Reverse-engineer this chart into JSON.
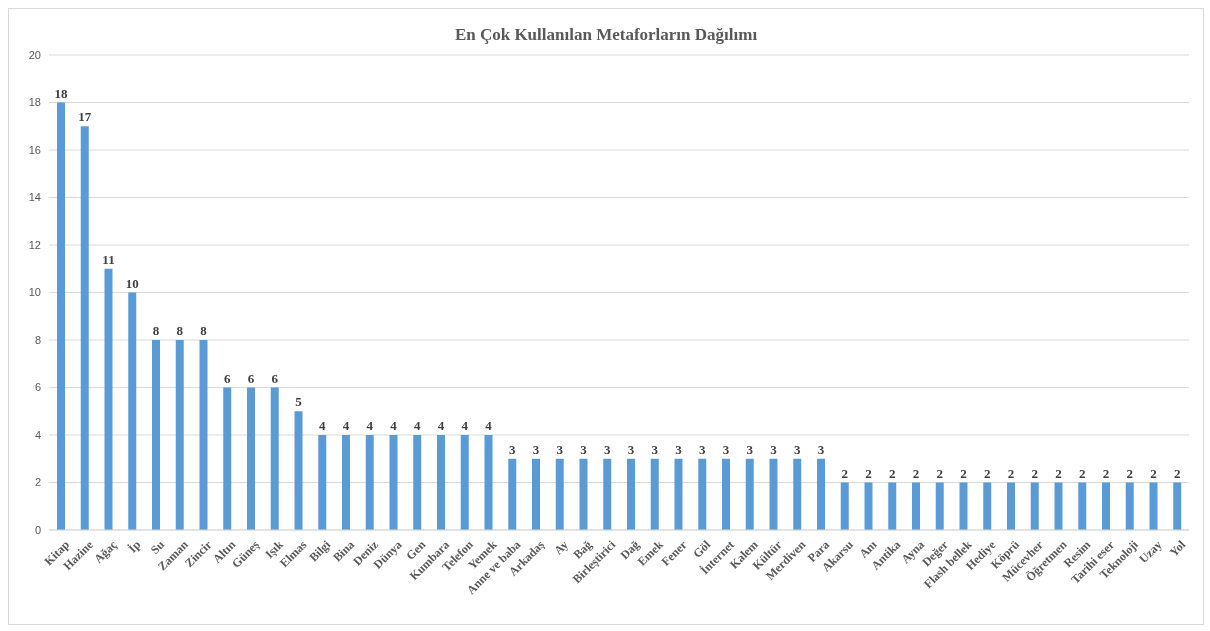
{
  "chart_data": {
    "type": "bar",
    "title": "En Çok Kullanılan Metaforların Dağılımı",
    "categories": [
      "Kitap",
      "Hazine",
      "Ağaç",
      "İp",
      "Su",
      "Zaman",
      "Zincir",
      "Altın",
      "Güneş",
      "Işık",
      "Elmas",
      "Bilgi",
      "Bina",
      "Deniz",
      "Dünya",
      "Gen",
      "Kumbara",
      "Telefon",
      "Yemek",
      "Anne ve baba",
      "Arkadaş",
      "Ay",
      "Bağ",
      "Birleştirici",
      "Dağ",
      "Emek",
      "Fener",
      "Göl",
      "İnternet",
      "Kalem",
      "Kültür",
      "Merdiven",
      "Para",
      "Akarsu",
      "Anı",
      "Antika",
      "Ayna",
      "Değer",
      "Flash bellek",
      "Hediye",
      "Köprü",
      "Mücevher",
      "Öğretmen",
      "Resim",
      "Tarihi eser",
      "Teknoloji",
      "Uzay",
      "Yol"
    ],
    "values": [
      18,
      17,
      11,
      10,
      8,
      8,
      8,
      6,
      6,
      6,
      5,
      4,
      4,
      4,
      4,
      4,
      4,
      4,
      4,
      3,
      3,
      3,
      3,
      3,
      3,
      3,
      3,
      3,
      3,
      3,
      3,
      3,
      3,
      2,
      2,
      2,
      2,
      2,
      2,
      2,
      2,
      2,
      2,
      2,
      2,
      2,
      2,
      2
    ],
    "color": "#5b9bd5",
    "ylim": [
      0,
      20
    ],
    "yticks": [
      0,
      2,
      4,
      6,
      8,
      10,
      12,
      14,
      16,
      18,
      20
    ],
    "grid": "y",
    "data_labels": true
  }
}
